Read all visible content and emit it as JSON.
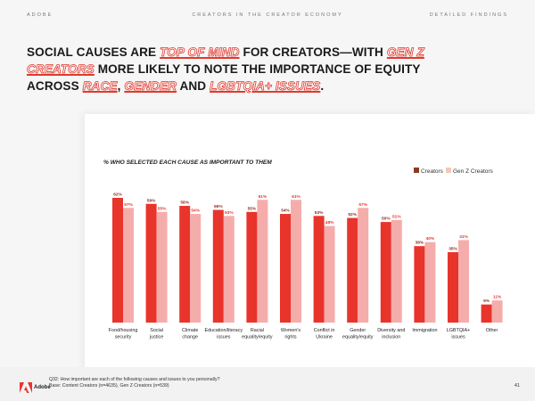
{
  "header": {
    "brand": "ADOBE",
    "section": "CREATORS IN THE CREATOR ECONOMY",
    "tag": "DETAILED FINDINGS"
  },
  "headline": {
    "p1": "SOCIAL CAUSES ARE ",
    "h1": "TOP OF MIND",
    "p2": " FOR CREATORS—WITH ",
    "h2": "GEN Z CREATORS",
    "p3": " MORE LIKELY TO NOTE THE IMPORTANCE OF EQUITY ACROSS ",
    "h3": "RACE",
    "p4": ", ",
    "h4": "GENDER",
    "p5": " AND ",
    "h5": "LGBTQIA+ ISSUES",
    "p6": "."
  },
  "footer": {
    "logo_text": "Adobe",
    "note_line1": "Q32: How important are each of the following causes and issues to you personally?",
    "note_line2": "Base: Content Creators (n=4635), Gen Z Creators (n=539)",
    "page": "41"
  },
  "colors": {
    "creators": "#e8342b",
    "gen_z": "#f5adab",
    "creators_legend": "#8a3b24",
    "gen_z_legend": "#f2c9b8",
    "highlight": "#e03a2f"
  },
  "chart_data": {
    "type": "bar",
    "title": "% WHO SELECTED EACH CAUSE AS IMPORTANT TO THEM",
    "categories": [
      [
        "Food/housing",
        "security"
      ],
      [
        "Social",
        "justice"
      ],
      [
        "Climate",
        "change"
      ],
      [
        "Education/literacy",
        "issues"
      ],
      [
        "Racial",
        "equality/equity"
      ],
      [
        "Women's",
        "rights"
      ],
      [
        "Conflict in",
        "Ukraine"
      ],
      [
        "Gender",
        "equality/equity"
      ],
      [
        "Diversity and",
        "inclusion"
      ],
      [
        "Immigration"
      ],
      [
        "LGBTQIA+",
        "issues"
      ],
      [
        "Other"
      ]
    ],
    "series": [
      {
        "name": "Creators",
        "values": [
          62,
          59,
          58,
          56,
          55,
          54,
          53,
          52,
          50,
          38,
          35,
          9
        ],
        "labels": [
          "62%",
          "59%",
          "58%",
          "56%",
          "55%",
          "54%",
          "53%",
          "52%",
          "50%",
          "38%",
          "35%",
          "9%"
        ]
      },
      {
        "name": "Gen Z Creators",
        "values": [
          57,
          55,
          54,
          53,
          61,
          61,
          48,
          57,
          51,
          40,
          41,
          11
        ],
        "labels": [
          "57%",
          "55%",
          "54%",
          "53%",
          "61%",
          "61%",
          "48%",
          "57%",
          "51%",
          "40%",
          "41%",
          "11%"
        ]
      }
    ],
    "ylim": [
      0,
      62
    ],
    "legend_position": "top-right",
    "grid": false
  }
}
